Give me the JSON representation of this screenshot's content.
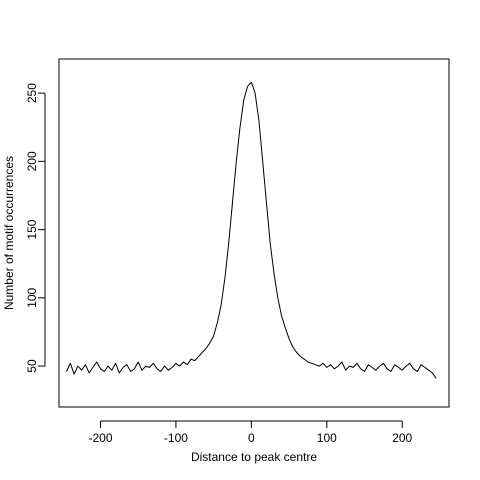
{
  "chart_data": {
    "type": "line",
    "title": "",
    "xlabel": "Distance to peak centre",
    "ylabel": "Number of motif occurrences",
    "xlim": [
      -255,
      262
    ],
    "ylim": [
      20,
      275
    ],
    "xticks": [
      -200,
      -100,
      0,
      100,
      200
    ],
    "yticks": [
      50,
      100,
      150,
      200,
      250
    ],
    "xtick_labels": [
      "-200",
      "-100",
      "0",
      "100",
      "200"
    ],
    "ytick_labels": [
      "50",
      "100",
      "150",
      "200",
      "250"
    ],
    "grid": false,
    "legend": "none",
    "line_color": "#000000",
    "series": [
      {
        "x": [
          -245,
          -240,
          -235,
          -230,
          -225,
          -220,
          -215,
          -210,
          -205,
          -200,
          -195,
          -190,
          -185,
          -180,
          -175,
          -170,
          -165,
          -160,
          -155,
          -150,
          -145,
          -140,
          -135,
          -130,
          -125,
          -120,
          -115,
          -110,
          -105,
          -100,
          -95,
          -90,
          -85,
          -80,
          -75,
          -70,
          -65,
          -60,
          -55,
          -50,
          -45,
          -40,
          -35,
          -30,
          -25,
          -20,
          -15,
          -10,
          -5,
          0,
          5,
          10,
          15,
          20,
          25,
          30,
          35,
          40,
          45,
          50,
          55,
          60,
          65,
          70,
          75,
          80,
          85,
          90,
          95,
          100,
          105,
          110,
          115,
          120,
          125,
          130,
          135,
          140,
          145,
          150,
          155,
          160,
          165,
          170,
          175,
          180,
          185,
          190,
          195,
          200,
          205,
          210,
          215,
          220,
          225,
          230,
          235,
          240,
          245
        ],
        "values": [
          46,
          52,
          44,
          50,
          47,
          51,
          45,
          49,
          53,
          48,
          46,
          50,
          47,
          52,
          45,
          49,
          51,
          46,
          48,
          53,
          47,
          50,
          49,
          52,
          48,
          46,
          50,
          47,
          49,
          52,
          50,
          53,
          51,
          55,
          54,
          57,
          60,
          63,
          67,
          72,
          82,
          95,
          115,
          140,
          170,
          200,
          225,
          245,
          255,
          258,
          250,
          230,
          200,
          170,
          140,
          118,
          100,
          87,
          78,
          70,
          64,
          60,
          57,
          55,
          53,
          52,
          51,
          50,
          52,
          49,
          51,
          48,
          50,
          53,
          47,
          50,
          49,
          52,
          48,
          46,
          51,
          49,
          47,
          50,
          52,
          48,
          46,
          51,
          49,
          47,
          50,
          52,
          48,
          46,
          51,
          49,
          47,
          45,
          41
        ]
      }
    ]
  }
}
